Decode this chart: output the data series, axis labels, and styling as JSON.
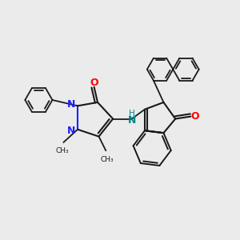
{
  "bg_color": "#ebebeb",
  "bond_color": "#1a1a1a",
  "N_color": "#2020ff",
  "O_color": "#ff0000",
  "NH_color": "#008888",
  "figsize": [
    3.0,
    3.0
  ],
  "dpi": 100,
  "xlim": [
    0,
    10
  ],
  "ylim": [
    0,
    10
  ]
}
